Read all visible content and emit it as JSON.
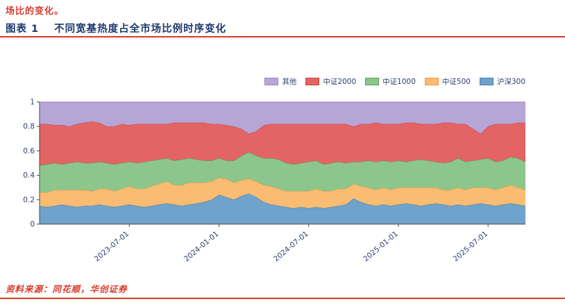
{
  "report": {
    "top_note": "场比的变化。",
    "figure_label": "图表 1",
    "figure_title": "不同宽基热度占全市场比例时序变化",
    "source_label": "资料来源：同花顺，华创证券"
  },
  "colors": {
    "accent_red": "#d8392c",
    "title_navy": "#1d3a6d",
    "axis_text": "#2f3f70",
    "axis_line": "#4a4a4a"
  },
  "chart_data": {
    "type": "area",
    "stacked": true,
    "normalized": true,
    "title": "不同宽基热度占全市场比例时序变化",
    "xlabel": "",
    "ylabel": "",
    "ylim": [
      0,
      1
    ],
    "grid": false,
    "legend_position": "top-right",
    "legend_order": [
      "其他",
      "中证2000",
      "中证1000",
      "中证500",
      "沪深300"
    ],
    "y_ticks": [
      0,
      0.2,
      0.4,
      0.6,
      0.8,
      1
    ],
    "y_tick_labels": [
      "0",
      "0.2",
      "0.4",
      "0.6",
      "0.8",
      "1"
    ],
    "x_ticks": [
      "2023-07-01",
      "2024-01-01",
      "2024-07-01",
      "2025-01-01",
      "2025-07-01"
    ],
    "x": [
      "2023-01-01",
      "2023-01-16",
      "2023-02-01",
      "2023-02-16",
      "2023-03-01",
      "2023-03-16",
      "2023-04-01",
      "2023-04-16",
      "2023-05-01",
      "2023-05-16",
      "2023-06-01",
      "2023-06-16",
      "2023-07-01",
      "2023-07-16",
      "2023-08-01",
      "2023-08-16",
      "2023-09-01",
      "2023-09-16",
      "2023-10-01",
      "2023-10-16",
      "2023-11-01",
      "2023-11-16",
      "2023-12-01",
      "2023-12-16",
      "2024-01-01",
      "2024-01-16",
      "2024-02-01",
      "2024-02-16",
      "2024-03-01",
      "2024-03-16",
      "2024-04-01",
      "2024-04-16",
      "2024-05-01",
      "2024-05-16",
      "2024-06-01",
      "2024-06-16",
      "2024-07-01",
      "2024-07-16",
      "2024-08-01",
      "2024-08-16",
      "2024-09-01",
      "2024-09-16",
      "2024-10-01",
      "2024-10-16",
      "2024-11-01",
      "2024-11-16",
      "2024-12-01",
      "2024-12-16",
      "2025-01-01",
      "2025-01-16",
      "2025-02-01",
      "2025-02-16",
      "2025-03-01",
      "2025-03-16",
      "2025-04-01",
      "2025-04-16",
      "2025-05-01",
      "2025-05-16",
      "2025-06-01",
      "2025-06-16",
      "2025-07-01",
      "2025-07-16",
      "2025-08-01",
      "2025-08-16",
      "2025-09-01",
      "2025-09-16"
    ],
    "series": [
      {
        "name": "沪深300",
        "fill": "#6fa3cc",
        "line": "#3f7fae",
        "values": [
          0.15,
          0.14,
          0.15,
          0.16,
          0.15,
          0.14,
          0.15,
          0.15,
          0.16,
          0.15,
          0.14,
          0.15,
          0.16,
          0.15,
          0.14,
          0.15,
          0.16,
          0.17,
          0.16,
          0.15,
          0.16,
          0.17,
          0.18,
          0.2,
          0.24,
          0.22,
          0.2,
          0.23,
          0.25,
          0.22,
          0.18,
          0.16,
          0.15,
          0.14,
          0.13,
          0.14,
          0.13,
          0.14,
          0.13,
          0.14,
          0.15,
          0.16,
          0.21,
          0.18,
          0.16,
          0.15,
          0.16,
          0.15,
          0.16,
          0.17,
          0.16,
          0.15,
          0.16,
          0.17,
          0.16,
          0.15,
          0.16,
          0.15,
          0.16,
          0.17,
          0.16,
          0.15,
          0.16,
          0.17,
          0.16,
          0.15
        ]
      },
      {
        "name": "中证500",
        "fill": "#f9bc72",
        "line": "#ef9639",
        "values": [
          0.11,
          0.12,
          0.13,
          0.12,
          0.13,
          0.14,
          0.13,
          0.12,
          0.13,
          0.14,
          0.13,
          0.14,
          0.15,
          0.14,
          0.15,
          0.16,
          0.17,
          0.18,
          0.16,
          0.17,
          0.18,
          0.17,
          0.16,
          0.15,
          0.14,
          0.15,
          0.14,
          0.13,
          0.12,
          0.13,
          0.14,
          0.15,
          0.14,
          0.13,
          0.14,
          0.13,
          0.14,
          0.15,
          0.14,
          0.13,
          0.14,
          0.13,
          0.12,
          0.13,
          0.14,
          0.13,
          0.14,
          0.13,
          0.14,
          0.13,
          0.14,
          0.15,
          0.14,
          0.13,
          0.12,
          0.13,
          0.14,
          0.13,
          0.14,
          0.13,
          0.14,
          0.13,
          0.14,
          0.15,
          0.14,
          0.13
        ]
      },
      {
        "name": "中证1000",
        "fill": "#8cc68c",
        "line": "#55a055",
        "values": [
          0.22,
          0.23,
          0.22,
          0.21,
          0.22,
          0.23,
          0.22,
          0.23,
          0.22,
          0.21,
          0.22,
          0.21,
          0.2,
          0.21,
          0.22,
          0.21,
          0.2,
          0.19,
          0.2,
          0.21,
          0.2,
          0.19,
          0.18,
          0.17,
          0.16,
          0.15,
          0.18,
          0.2,
          0.22,
          0.21,
          0.22,
          0.23,
          0.24,
          0.23,
          0.22,
          0.23,
          0.24,
          0.23,
          0.22,
          0.23,
          0.22,
          0.21,
          0.18,
          0.2,
          0.22,
          0.23,
          0.22,
          0.23,
          0.22,
          0.21,
          0.22,
          0.23,
          0.22,
          0.21,
          0.22,
          0.23,
          0.24,
          0.23,
          0.22,
          0.23,
          0.24,
          0.23,
          0.22,
          0.23,
          0.24,
          0.23
        ]
      },
      {
        "name": "中证2000",
        "fill": "#e36464",
        "line": "#cf3b3b",
        "values": [
          0.34,
          0.33,
          0.31,
          0.32,
          0.3,
          0.31,
          0.33,
          0.34,
          0.32,
          0.3,
          0.31,
          0.32,
          0.3,
          0.32,
          0.31,
          0.3,
          0.29,
          0.28,
          0.31,
          0.3,
          0.29,
          0.3,
          0.31,
          0.3,
          0.28,
          0.29,
          0.28,
          0.22,
          0.15,
          0.2,
          0.27,
          0.28,
          0.29,
          0.32,
          0.33,
          0.32,
          0.31,
          0.3,
          0.33,
          0.32,
          0.31,
          0.32,
          0.29,
          0.31,
          0.3,
          0.32,
          0.3,
          0.31,
          0.3,
          0.32,
          0.31,
          0.29,
          0.3,
          0.31,
          0.33,
          0.32,
          0.28,
          0.31,
          0.26,
          0.21,
          0.26,
          0.31,
          0.3,
          0.27,
          0.29,
          0.32
        ]
      },
      {
        "name": "其他",
        "fill": "#b5a6d6",
        "line": "#9a86c4",
        "values": [
          0.18,
          0.18,
          0.19,
          0.19,
          0.2,
          0.18,
          0.17,
          0.16,
          0.17,
          0.2,
          0.2,
          0.18,
          0.19,
          0.18,
          0.18,
          0.18,
          0.18,
          0.18,
          0.17,
          0.17,
          0.17,
          0.17,
          0.17,
          0.18,
          0.18,
          0.19,
          0.2,
          0.22,
          0.26,
          0.24,
          0.19,
          0.18,
          0.18,
          0.18,
          0.18,
          0.18,
          0.18,
          0.18,
          0.18,
          0.18,
          0.18,
          0.18,
          0.2,
          0.18,
          0.18,
          0.17,
          0.18,
          0.18,
          0.18,
          0.17,
          0.17,
          0.18,
          0.18,
          0.18,
          0.17,
          0.17,
          0.18,
          0.18,
          0.22,
          0.26,
          0.2,
          0.18,
          0.18,
          0.18,
          0.17,
          0.17
        ]
      }
    ]
  }
}
